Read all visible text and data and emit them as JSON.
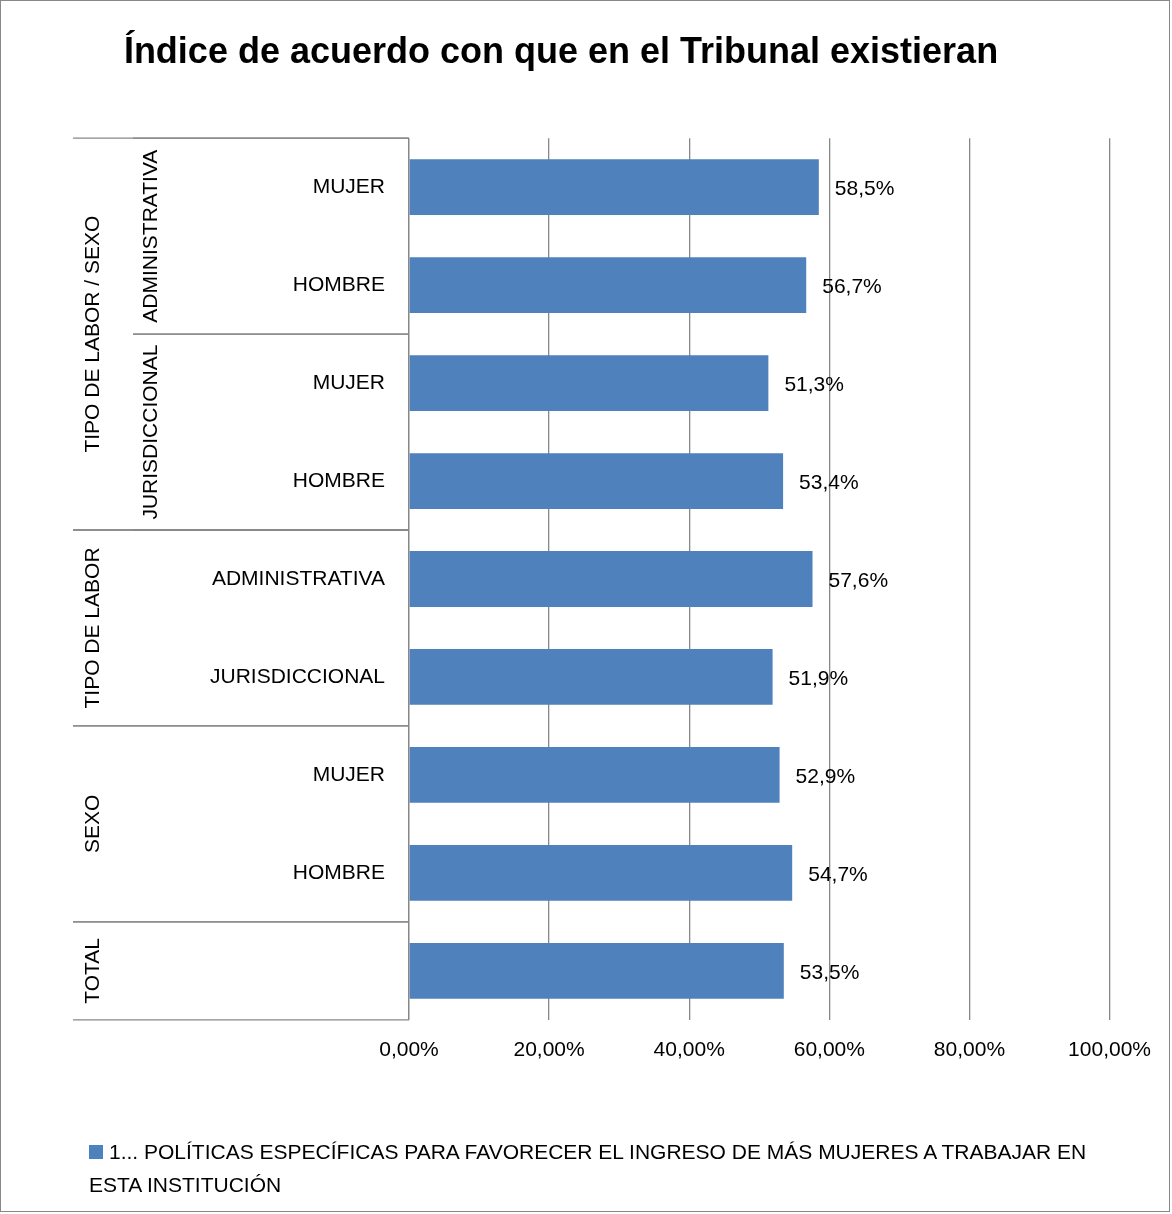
{
  "chart_data": {
    "type": "bar",
    "orientation": "horizontal",
    "title": "Índice de acuerdo con que en el Tribunal existieran",
    "categories": [
      "MUJER",
      "HOMBRE",
      "MUJER",
      "HOMBRE",
      "ADMINISTRATIVA",
      "JURISDICCIONAL",
      "MUJER",
      "HOMBRE",
      null
    ],
    "series": [
      {
        "name": "1... POLÍTICAS  ESPECÍFICAS PARA FAVORECER EL INGRESO DE MÁS MUJERES A TRABAJAR EN ESTA INSTITUCIÓN",
        "color": "#4f81bd",
        "values": [
          58.5,
          56.7,
          51.3,
          53.4,
          57.6,
          51.9,
          52.9,
          54.7,
          53.5
        ],
        "value_labels": [
          "58,5%",
          "56,7%",
          "51,3%",
          "53,4%",
          "57,6%",
          "51,9%",
          "52,9%",
          "54,7%",
          "53,5%"
        ]
      }
    ],
    "xlim": [
      0,
      100
    ],
    "xticks": [
      {
        "value": 0,
        "label": "0,00%"
      },
      {
        "value": 20,
        "label": "20,00%"
      },
      {
        "value": 40,
        "label": "40,00%"
      },
      {
        "value": 60,
        "label": "60,00%"
      },
      {
        "value": 80,
        "label": "80,00%"
      },
      {
        "value": 100,
        "label": "100,00%"
      }
    ],
    "grid": "x",
    "legend": "bottom",
    "annotations": [
      "TIPO DE LABOR / SEXO",
      "ADMINISTRATIVA",
      "JURISDICCIONAL",
      "TIPO DE LABOR",
      "SEXO",
      "TOTAL"
    ]
  }
}
